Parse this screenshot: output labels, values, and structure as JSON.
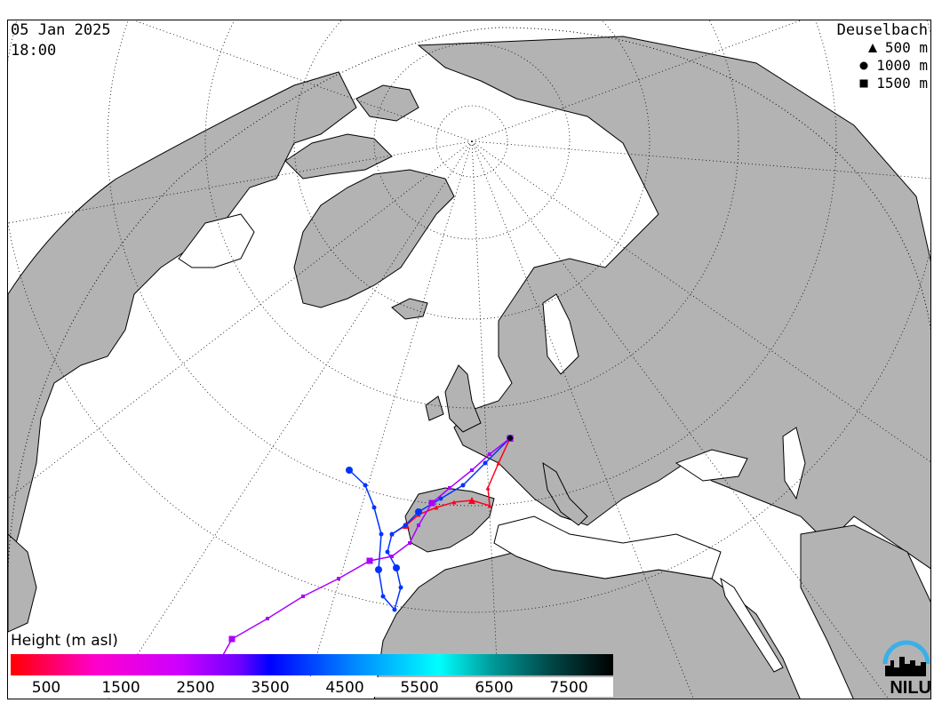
{
  "header": {
    "date": "05 Jan 2025",
    "time": "18:00"
  },
  "station": {
    "name": "Deuselbach",
    "legend": [
      {
        "symbol": "triangle",
        "label": "500 m"
      },
      {
        "symbol": "circle",
        "label": "1000 m"
      },
      {
        "symbol": "square",
        "label": "1500 m"
      }
    ]
  },
  "colorbar": {
    "title": "Height (m asl)",
    "ticks": [
      "500",
      "1500",
      "2500",
      "3500",
      "4500",
      "5500",
      "6500",
      "7500"
    ],
    "colors": [
      "#ff0000",
      "#ff00cc",
      "#cc00ff",
      "#6f00ff",
      "#0000ff",
      "#0088ff",
      "#00ffff",
      "#009999",
      "#004444",
      "#000000"
    ]
  },
  "logo": {
    "text": "NILU",
    "color": "#3ab0e8"
  },
  "colors": {
    "land": "#b3b3b3",
    "sea": "#ffffff",
    "graticule": "#000000"
  }
}
